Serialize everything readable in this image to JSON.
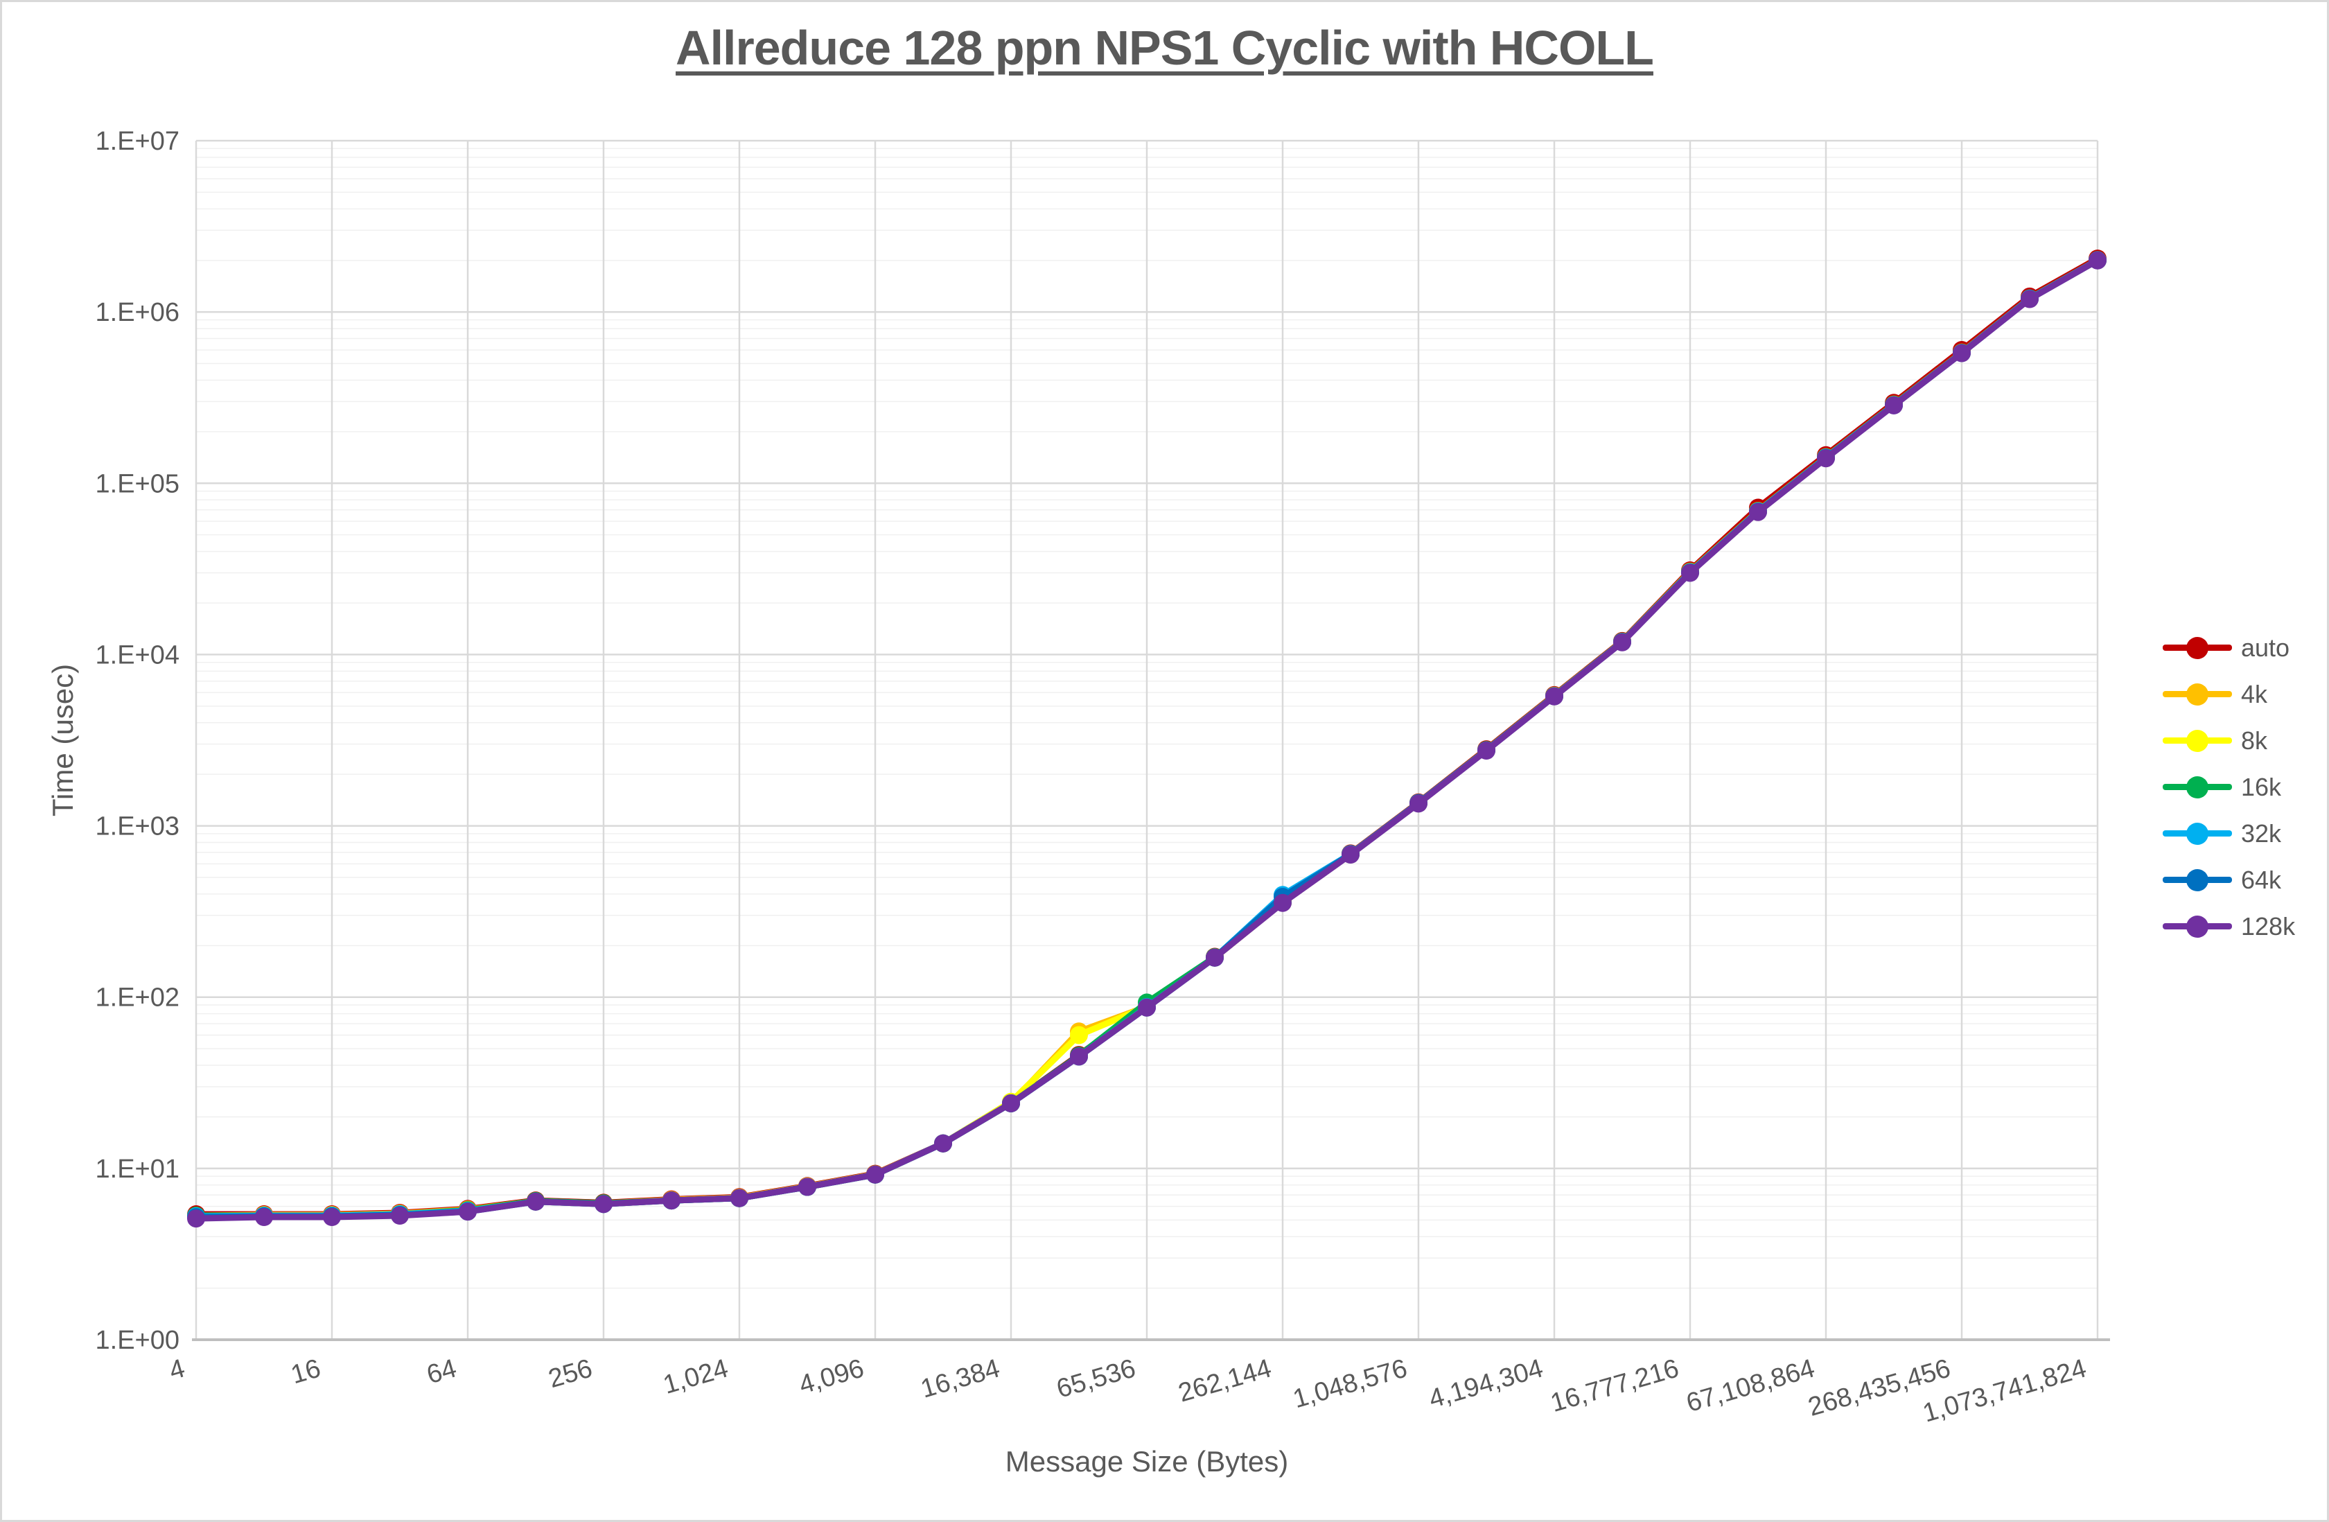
{
  "frame": {
    "background": "#FFFFFF",
    "border_color": "#D9D9D9"
  },
  "chart": {
    "title_color": "#595959",
    "text_color": "#595959",
    "gridline_major_color": "#D9D9D9",
    "gridline_minor_color": "#F0F0F0",
    "axis_line_color": "#BFBFBF"
  },
  "chart_data": {
    "type": "line",
    "title": "Allreduce 128 ppn NPS1 Cyclic with HCOLL",
    "xlabel": "Message Size (Bytes)",
    "ylabel": "Time (usec)",
    "x_scale": "log2",
    "y_scale": "log10",
    "ylim": [
      1,
      10000000
    ],
    "grid": "major-and-minor",
    "legend_position": "right",
    "x": [
      4,
      8,
      16,
      32,
      64,
      128,
      256,
      512,
      1024,
      2048,
      4096,
      8192,
      16384,
      32768,
      65536,
      131072,
      262144,
      524288,
      1048576,
      2097152,
      4194304,
      8388608,
      16777216,
      33554432,
      67108864,
      134217728,
      268435456,
      536870912,
      1073741824
    ],
    "x_tick_labels": [
      "4",
      "16",
      "64",
      "256",
      "1,024",
      "4,096",
      "16,384",
      "65,536",
      "262,144",
      "1,048,576",
      "4,194,304",
      "16,777,216",
      "67,108,864",
      "268,435,456",
      "1,073,741,824"
    ],
    "y_tick_labels": [
      "1.E+00",
      "1.E+01",
      "1.E+02",
      "1.E+03",
      "1.E+04",
      "1.E+05",
      "1.E+06",
      "1.E+07"
    ],
    "series": [
      {
        "name": "auto",
        "color": "#C00000",
        "values": [
          5.4,
          5.4,
          5.4,
          5.5,
          5.8,
          6.5,
          6.3,
          6.6,
          6.8,
          7.9,
          9.3,
          14,
          24,
          46,
          88,
          172,
          360,
          690,
          1370,
          2800,
          5800,
          12000,
          31000,
          72000,
          146000,
          295000,
          600000,
          1230000,
          2050000
        ]
      },
      {
        "name": "4k",
        "color": "#FFC000",
        "values": [
          5.3,
          5.35,
          5.35,
          5.45,
          5.75,
          6.45,
          6.25,
          6.55,
          6.75,
          7.85,
          9.25,
          14,
          24,
          63,
          88,
          171,
          358,
          685,
          1360,
          2770,
          5750,
          11900,
          30500,
          69000,
          142000,
          288000,
          580000,
          1200000,
          2010000
        ]
      },
      {
        "name": "8k",
        "color": "#FFFF00",
        "values": [
          5.25,
          5.3,
          5.3,
          5.4,
          5.7,
          6.4,
          6.2,
          6.5,
          6.7,
          7.8,
          9.2,
          14,
          24.5,
          60,
          88,
          170,
          356,
          682,
          1355,
          2760,
          5720,
          11850,
          30200,
          68500,
          141000,
          286000,
          577000,
          1195000,
          2005000
        ]
      },
      {
        "name": "16k",
        "color": "#00B050",
        "values": [
          5.3,
          5.3,
          5.3,
          5.4,
          5.7,
          6.45,
          6.25,
          6.5,
          6.7,
          7.8,
          9.2,
          14,
          24,
          45.5,
          93,
          171,
          357,
          683,
          1357,
          2765,
          5730,
          11870,
          30300,
          68700,
          141500,
          287000,
          578000,
          1197000,
          2007000
        ]
      },
      {
        "name": "32k",
        "color": "#00B0F0",
        "values": [
          5.25,
          5.3,
          5.3,
          5.4,
          5.65,
          6.4,
          6.2,
          6.5,
          6.7,
          7.8,
          9.2,
          14,
          24,
          45,
          87.5,
          170,
          395,
          685,
          1360,
          2760,
          5720,
          11850,
          30200,
          68500,
          141000,
          286000,
          577000,
          1196000,
          2006000
        ]
      },
      {
        "name": "64k",
        "color": "#0070C0",
        "values": [
          5.2,
          5.25,
          5.25,
          5.35,
          5.6,
          6.4,
          6.2,
          6.5,
          6.7,
          7.8,
          9.2,
          14,
          24,
          45,
          87,
          170,
          385,
          682,
          1355,
          2755,
          5710,
          11820,
          30100,
          68200,
          140500,
          285500,
          576000,
          1192000,
          2002000
        ]
      },
      {
        "name": "128k",
        "color": "#7030A0",
        "values": [
          5.1,
          5.2,
          5.2,
          5.3,
          5.6,
          6.4,
          6.2,
          6.5,
          6.7,
          7.8,
          9.2,
          14,
          24,
          45,
          87,
          170,
          355,
          680,
          1350,
          2750,
          5700,
          11800,
          30000,
          68000,
          140000,
          285000,
          575000,
          1190000,
          2000000
        ]
      }
    ]
  }
}
